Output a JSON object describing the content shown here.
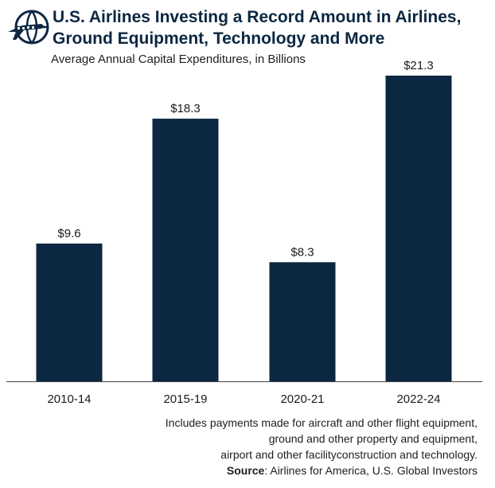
{
  "header": {
    "logo_icon": "airplane-globe-icon",
    "title_line1": "U.S. Airlines Investing a Record Amount in Airlines,",
    "title_line2": "Ground Equipment, Technology and More",
    "subtitle": "Average Annual Capital Expenditures, in Billions"
  },
  "chart_data": {
    "type": "bar",
    "categories": [
      "2010-14",
      "2015-19",
      "2020-21",
      "2022-24"
    ],
    "values": [
      9.6,
      18.3,
      8.3,
      21.3
    ],
    "value_labels": [
      "$9.6",
      "$18.3",
      "$8.3",
      "$21.3"
    ],
    "xlabel": "",
    "ylabel": "",
    "ylim": [
      0,
      21.3
    ],
    "grid": false,
    "bar_color": "#0c2742"
  },
  "footer": {
    "note_line1": "Includes payments made for aircraft and other flight equipment,",
    "note_line2": "ground and other property and equipment,",
    "note_line3": "airport and other facilityconstruction and technology.",
    "source_label": "Source",
    "source_text": ": Airlines for America, U.S. Global Investors"
  }
}
